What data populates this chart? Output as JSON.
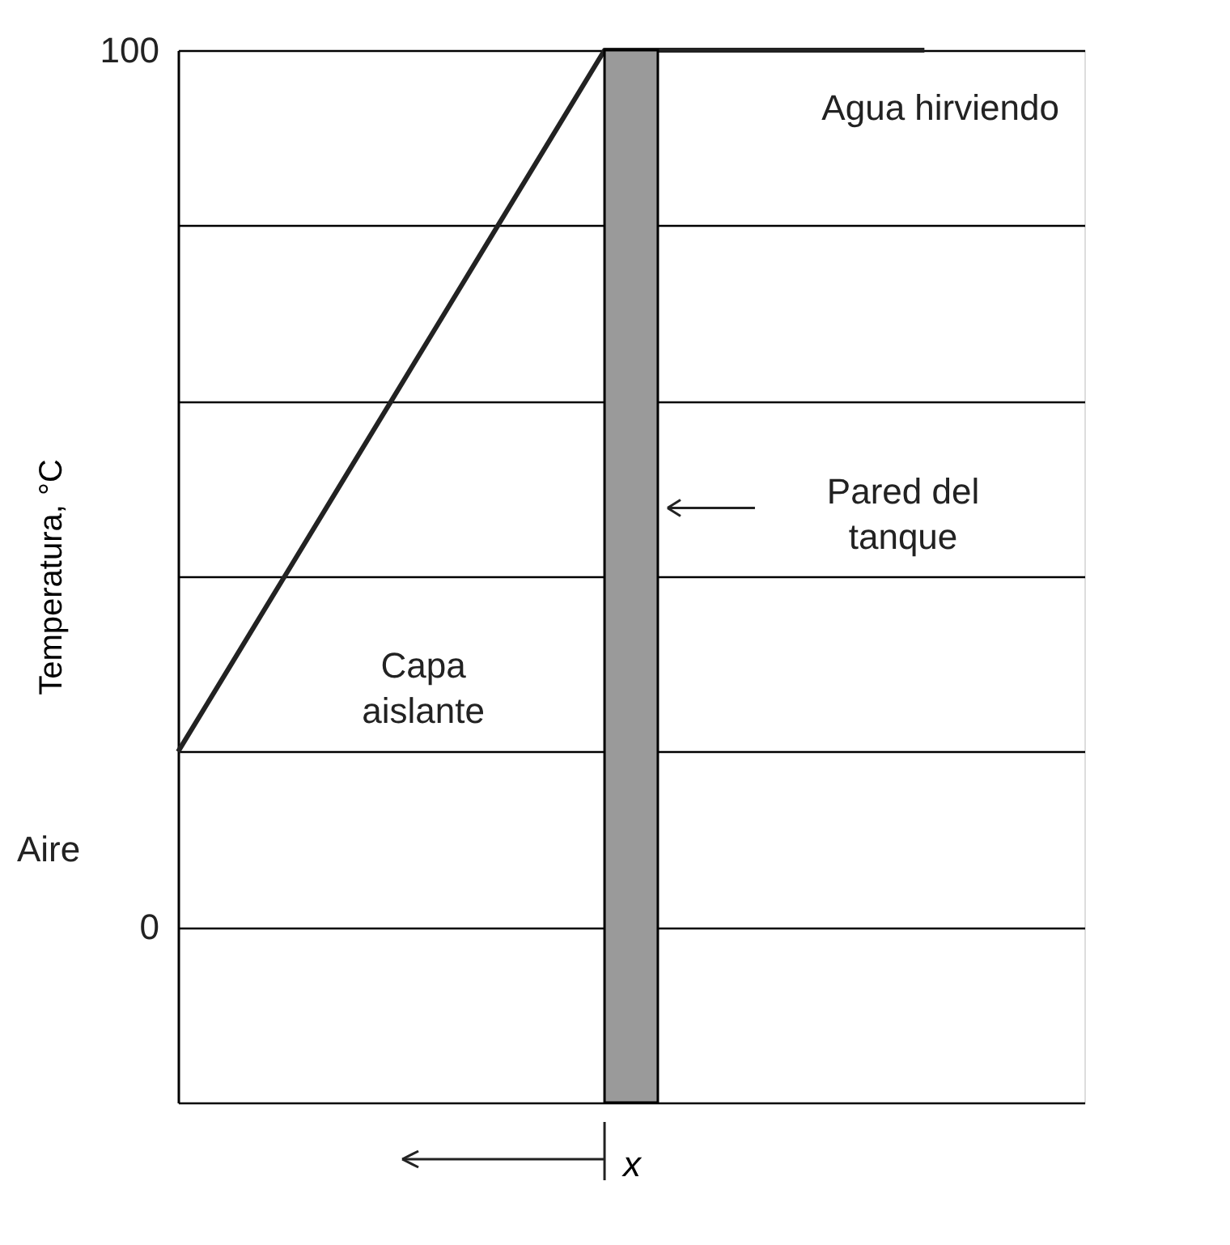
{
  "chart_data": {
    "type": "line",
    "ylabel": "Temperatura, °C",
    "xlabel": "x",
    "categories": [
      null,
      null,
      null,
      null,
      null,
      null,
      null,
      null,
      null,
      null,
      null,
      null,
      null,
      null,
      null,
      null,
      null,
      null
    ],
    "series": [
      {
        "color": "#222222",
        "values": [
          20,
          30,
          40,
          50,
          60,
          70,
          80,
          90,
          100,
          100,
          100,
          100,
          100,
          100,
          100,
          null,
          null,
          null
        ]
      }
    ],
    "ylim": [
      -20,
      100
    ],
    "yticks": [
      {
        "value": -20,
        "label": null
      },
      0,
      {
        "value": 20,
        "label": null
      },
      {
        "value": 40,
        "label": null
      },
      {
        "value": 60,
        "label": null
      },
      {
        "value": 80,
        "label": null
      },
      100
    ],
    "tick_labels": "y",
    "grid": "y",
    "annotations": [
      "Agua hirviendo",
      "Pared del\ntanque",
      "Capa\naislante",
      "Aire"
    ]
  }
}
